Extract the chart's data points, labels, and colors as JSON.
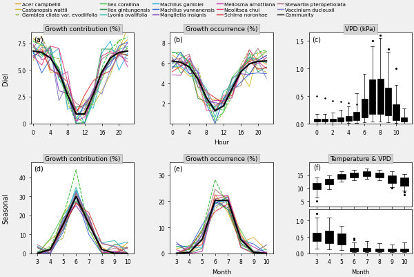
{
  "species_colors": [
    "#E8A020",
    "#D4B820",
    "#88A020",
    "#40C040",
    "#208840",
    "#20B8A0",
    "#20A8D8",
    "#2060D0",
    "#7030B8",
    "#C030A0",
    "#E03070",
    "#D02020",
    "#A06878",
    "#7878C8"
  ],
  "community_color": "#000000",
  "teal_color": "#4a8a87",
  "red_color": "#C84040",
  "strip_color": "#d3d3d3",
  "bg_color": "#f0f0f0",
  "legend_labels": [
    "Acer campbellii",
    "Castanopsis wattii",
    "Gamblea cliata var. evodiifolia",
    "Ilex corallina",
    "Ilex gintungensis",
    "Lyonia ovalifolia",
    "Machilus gamblei",
    "Machilus yunnanensis",
    "Manglietia insignis",
    "Meliosma arnottiana",
    "Neolitsea chui",
    "Schima noronhae",
    "Stewartia pteropetiolata",
    "Vaccinium duclouxii",
    "Community"
  ]
}
